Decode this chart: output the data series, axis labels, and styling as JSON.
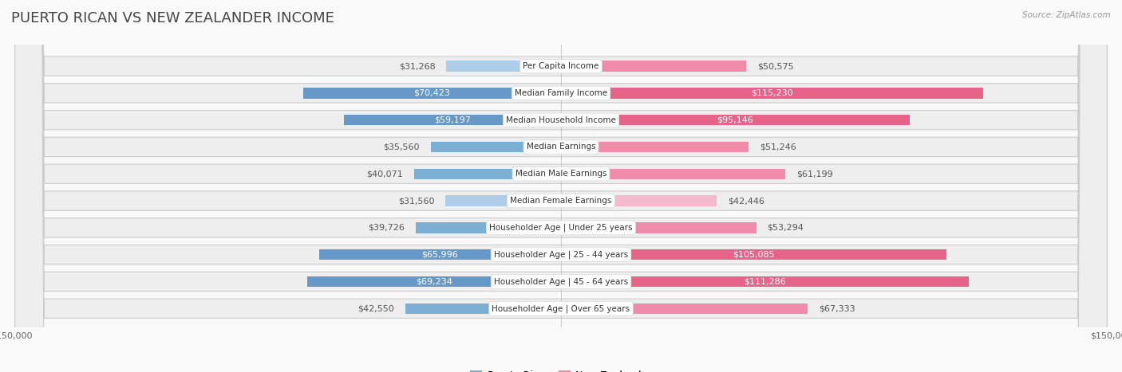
{
  "title": "PUERTO RICAN VS NEW ZEALANDER INCOME",
  "source": "Source: ZipAtlas.com",
  "categories": [
    "Per Capita Income",
    "Median Family Income",
    "Median Household Income",
    "Median Earnings",
    "Median Male Earnings",
    "Median Female Earnings",
    "Householder Age | Under 25 years",
    "Householder Age | 25 - 44 years",
    "Householder Age | 45 - 64 years",
    "Householder Age | Over 65 years"
  ],
  "puerto_rican": [
    31268,
    70423,
    59197,
    35560,
    40071,
    31560,
    39726,
    65996,
    69234,
    42550
  ],
  "new_zealander": [
    50575,
    115230,
    95146,
    51246,
    61199,
    42446,
    53294,
    105085,
    111286,
    67333
  ],
  "puerto_rican_labels": [
    "$31,268",
    "$70,423",
    "$59,197",
    "$35,560",
    "$40,071",
    "$31,560",
    "$39,726",
    "$65,996",
    "$69,234",
    "$42,550"
  ],
  "new_zealander_labels": [
    "$50,575",
    "$115,230",
    "$95,146",
    "$51,246",
    "$61,199",
    "$42,446",
    "$53,294",
    "$105,085",
    "$111,286",
    "$67,333"
  ],
  "color_pr_light": "#aecde8",
  "color_pr_mid": "#7bafd4",
  "color_pr_dark": "#6699c8",
  "color_nz_light": "#f5b8cc",
  "color_nz_mid": "#f08caa",
  "color_nz_dark": "#e8638a",
  "max_val": 150000,
  "row_bg": "#eeeeee",
  "fig_bg": "#f9f9f9",
  "title_color": "#444444",
  "label_dark_color": "#555555",
  "label_white_color": "#ffffff",
  "category_text_color": "#333333",
  "title_fontsize": 13,
  "label_fontsize": 8.0,
  "category_fontsize": 7.5,
  "axis_label_fontsize": 8,
  "legend_fontsize": 9,
  "pr_white_threshold": 45000,
  "nz_white_threshold": 70000
}
